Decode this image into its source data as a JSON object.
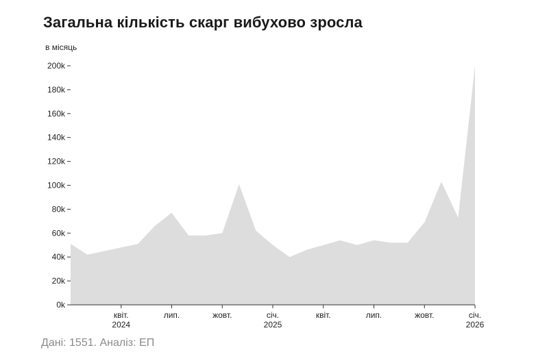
{
  "title": "Загальна кількість скарг вибухово зросла",
  "footer": "Дані: 1551. Аналіз: ЕП",
  "chart_data": {
    "type": "area",
    "title": "Загальна кількість скарг вибухово зросла",
    "ylabel": "в місяць",
    "ylim": [
      0,
      200000
    ],
    "y_ticks": [
      0,
      20000,
      40000,
      60000,
      80000,
      100000,
      120000,
      140000,
      160000,
      180000,
      200000
    ],
    "y_tick_labels": [
      "0k",
      "20k",
      "40k",
      "60k",
      "80k",
      "100k",
      "120k",
      "140k",
      "160k",
      "180k",
      "200k"
    ],
    "x_range": [
      "2024-01",
      "2026-02"
    ],
    "x_ticks": [
      {
        "x": "2024-04",
        "label": "квіт.",
        "year": "2024"
      },
      {
        "x": "2024-07",
        "label": "лип.",
        "year": ""
      },
      {
        "x": "2024-10",
        "label": "жовт.",
        "year": ""
      },
      {
        "x": "2025-01",
        "label": "січ.",
        "year": "2025"
      },
      {
        "x": "2025-04",
        "label": "квіт.",
        "year": ""
      },
      {
        "x": "2025-07",
        "label": "лип.",
        "year": ""
      },
      {
        "x": "2025-10",
        "label": "жовт.",
        "year": ""
      },
      {
        "x": "2026-01",
        "label": "січ.",
        "year": "2026"
      }
    ],
    "series": [
      {
        "color": "#dddddd",
        "points": [
          {
            "x": "2024-01",
            "y": 51000
          },
          {
            "x": "2024-02",
            "y": 42000
          },
          {
            "x": "2024-03",
            "y": 45000
          },
          {
            "x": "2024-04",
            "y": 48000
          },
          {
            "x": "2024-05",
            "y": 51000
          },
          {
            "x": "2024-06",
            "y": 66000
          },
          {
            "x": "2024-07",
            "y": 77000
          },
          {
            "x": "2024-08",
            "y": 58000
          },
          {
            "x": "2024-09",
            "y": 58000
          },
          {
            "x": "2024-10",
            "y": 60000
          },
          {
            "x": "2024-11",
            "y": 101000
          },
          {
            "x": "2024-12",
            "y": 62000
          },
          {
            "x": "2025-01",
            "y": 50000
          },
          {
            "x": "2025-02",
            "y": 40000
          },
          {
            "x": "2025-03",
            "y": 46000
          },
          {
            "x": "2025-04",
            "y": 50000
          },
          {
            "x": "2025-05",
            "y": 54000
          },
          {
            "x": "2025-06",
            "y": 50000
          },
          {
            "x": "2025-07",
            "y": 54000
          },
          {
            "x": "2025-08",
            "y": 52000
          },
          {
            "x": "2025-09",
            "y": 52000
          },
          {
            "x": "2025-10",
            "y": 69000
          },
          {
            "x": "2025-11",
            "y": 103000
          },
          {
            "x": "2025-12",
            "y": 73000
          },
          {
            "x": "2026-01",
            "y": 200000
          }
        ]
      }
    ],
    "grid": false,
    "legend": "none"
  }
}
